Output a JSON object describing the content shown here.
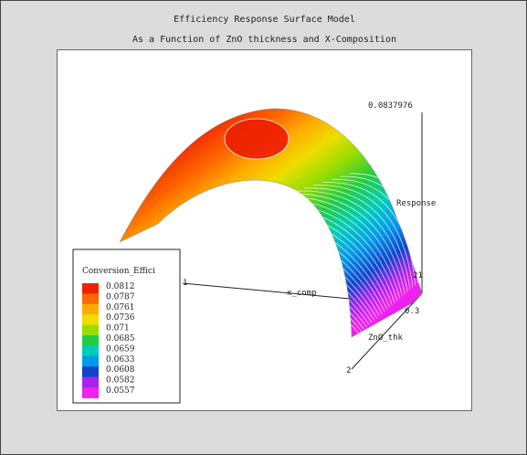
{
  "window": {
    "title": "Efficiency Response Surface Model",
    "subtitle": "As a Function of ZnO thickness and X-Composition"
  },
  "chart_data": {
    "type": "surface",
    "title": "Efficiency Response Surface Model",
    "subtitle": "As a Function of ZnO thickness and X-Composition",
    "axes": {
      "x_label": "x_comp",
      "y_label": "ZnO_thk",
      "z_label": "Response",
      "x_tick_labels": [
        "1",
        "2"
      ],
      "y_tick_labels": [
        "0.3",
        "2"
      ],
      "z_max_label": "0.0837976"
    },
    "legend": {
      "title": "Conversion_Effici",
      "placement": "bottom-left",
      "levels": [
        {
          "value": "0.0812",
          "color": "#ee2200"
        },
        {
          "value": "0.0787",
          "color": "#ff6600"
        },
        {
          "value": "0.0761",
          "color": "#ffaa00"
        },
        {
          "value": "0.0736",
          "color": "#eedd00"
        },
        {
          "value": "0.071",
          "color": "#99dd00"
        },
        {
          "value": "0.0685",
          "color": "#22cc44"
        },
        {
          "value": "0.0659",
          "color": "#00ccbb"
        },
        {
          "value": "0.0633",
          "color": "#0099ee"
        },
        {
          "value": "0.0608",
          "color": "#1144cc"
        },
        {
          "value": "0.0582",
          "color": "#aa22ee"
        },
        {
          "value": "0.0557",
          "color": "#ee22ee"
        }
      ]
    }
  }
}
